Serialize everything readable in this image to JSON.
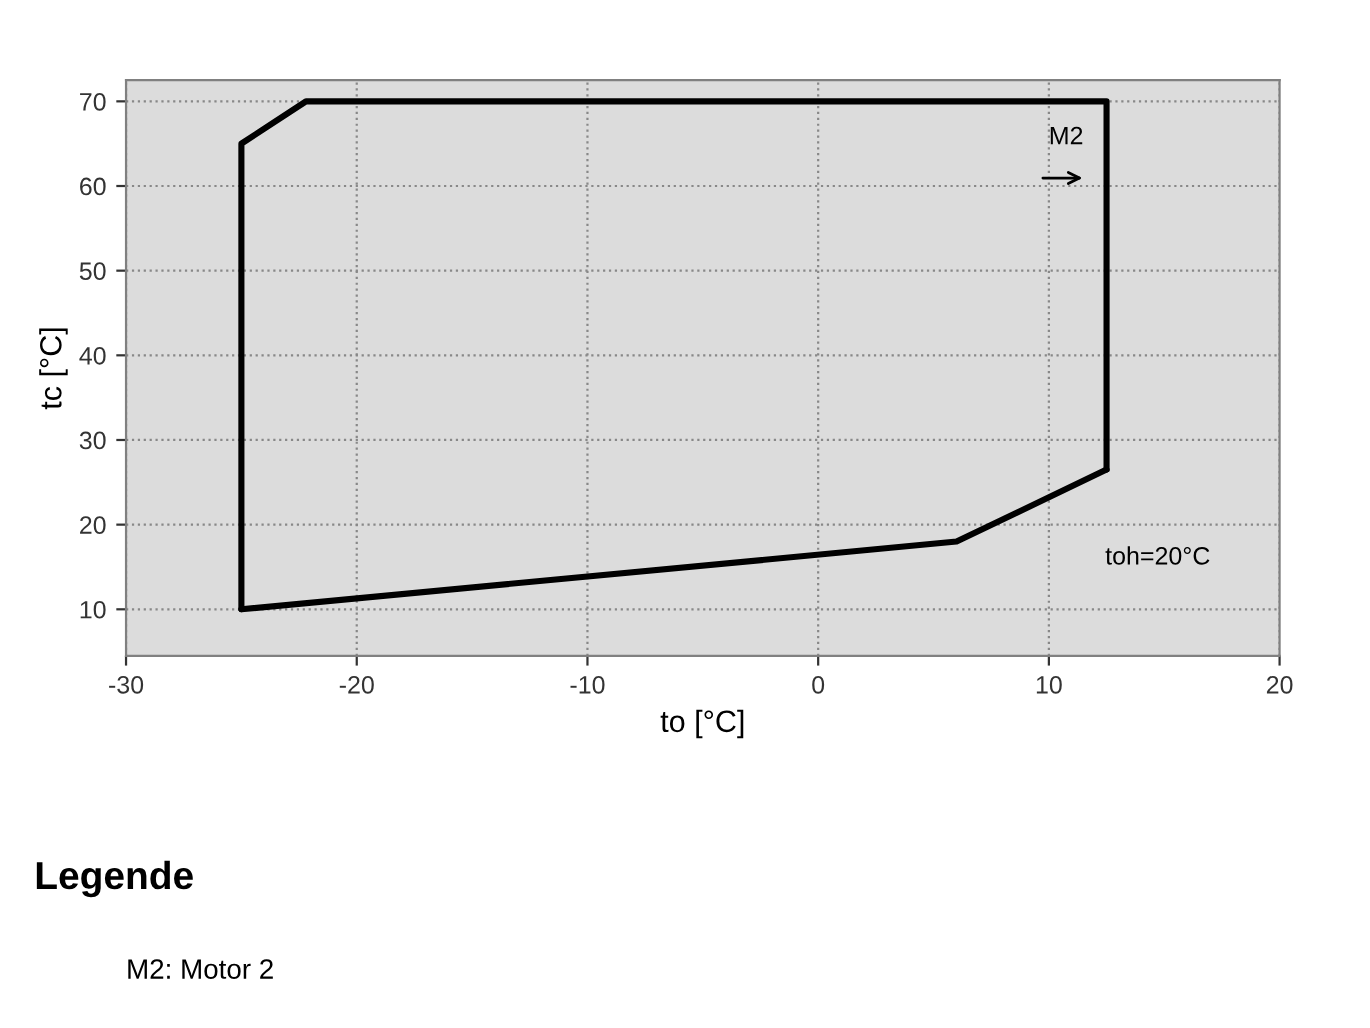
{
  "chart_data": {
    "type": "line",
    "xlabel": "to [°C]",
    "ylabel": "tc [°C]",
    "series": [
      {
        "color": "#000000",
        "x": [
          -25,
          -25,
          -22.2,
          12.5,
          12.5
        ],
        "values": [
          10,
          65,
          70,
          70,
          26.5
        ]
      },
      {
        "color": "#000000",
        "x": [
          -25,
          6,
          12.5
        ],
        "values": [
          10,
          18,
          26.5
        ]
      }
    ],
    "xlim": [
      -30,
      20
    ],
    "xticks": [
      -30,
      -20,
      -10,
      0,
      10,
      20
    ],
    "ylim": [
      4.5,
      72.5
    ],
    "yticks": [
      10,
      20,
      30,
      40,
      50,
      60,
      70
    ],
    "grid": true,
    "line_style": "solid",
    "marker": "none",
    "annotations": [
      "M2",
      "toh=20°C",
      "Legende",
      "M2: Motor 2"
    ]
  }
}
